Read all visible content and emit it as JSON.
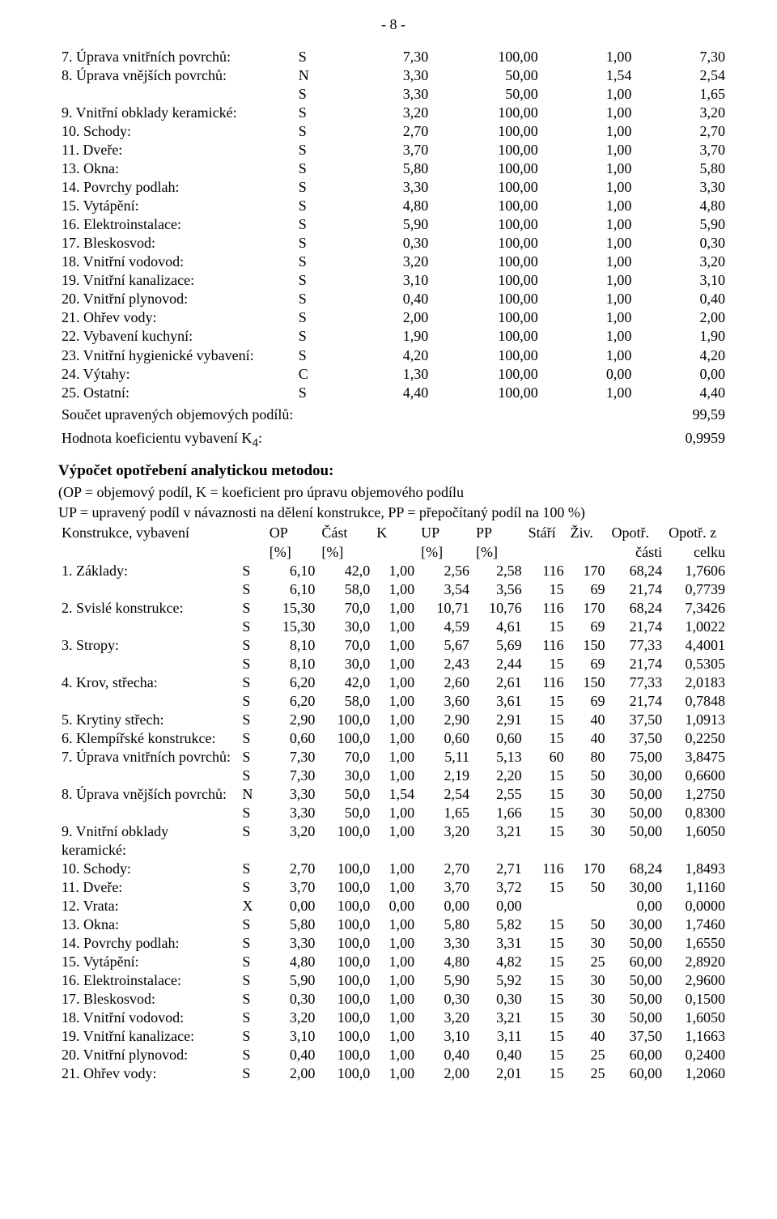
{
  "page_number": "- 8 -",
  "table1": {
    "rows": [
      {
        "label": "7. Úprava vnitřních povrchů:",
        "let": "S",
        "v1": "7,30",
        "v2": "100,00",
        "v3": "1,00",
        "v4": "7,30"
      },
      {
        "label": "8. Úprava vnějších povrchů:",
        "let": "N",
        "v1": "3,30",
        "v2": "50,00",
        "v3": "1,54",
        "v4": "2,54"
      },
      {
        "label": "",
        "let": "S",
        "v1": "3,30",
        "v2": "50,00",
        "v3": "1,00",
        "v4": "1,65"
      },
      {
        "label": "9. Vnitřní obklady keramické:",
        "let": "S",
        "v1": "3,20",
        "v2": "100,00",
        "v3": "1,00",
        "v4": "3,20"
      },
      {
        "label": "10. Schody:",
        "let": "S",
        "v1": "2,70",
        "v2": "100,00",
        "v3": "1,00",
        "v4": "2,70"
      },
      {
        "label": "11. Dveře:",
        "let": "S",
        "v1": "3,70",
        "v2": "100,00",
        "v3": "1,00",
        "v4": "3,70"
      },
      {
        "label": "13. Okna:",
        "let": "S",
        "v1": "5,80",
        "v2": "100,00",
        "v3": "1,00",
        "v4": "5,80"
      },
      {
        "label": "14. Povrchy podlah:",
        "let": "S",
        "v1": "3,30",
        "v2": "100,00",
        "v3": "1,00",
        "v4": "3,30"
      },
      {
        "label": "15. Vytápění:",
        "let": "S",
        "v1": "4,80",
        "v2": "100,00",
        "v3": "1,00",
        "v4": "4,80"
      },
      {
        "label": "16. Elektroinstalace:",
        "let": "S",
        "v1": "5,90",
        "v2": "100,00",
        "v3": "1,00",
        "v4": "5,90"
      },
      {
        "label": "17. Bleskosvod:",
        "let": "S",
        "v1": "0,30",
        "v2": "100,00",
        "v3": "1,00",
        "v4": "0,30"
      },
      {
        "label": "18. Vnitřní vodovod:",
        "let": "S",
        "v1": "3,20",
        "v2": "100,00",
        "v3": "1,00",
        "v4": "3,20"
      },
      {
        "label": "19. Vnitřní kanalizace:",
        "let": "S",
        "v1": "3,10",
        "v2": "100,00",
        "v3": "1,00",
        "v4": "3,10"
      },
      {
        "label": "20. Vnitřní plynovod:",
        "let": "S",
        "v1": "0,40",
        "v2": "100,00",
        "v3": "1,00",
        "v4": "0,40"
      },
      {
        "label": "21. Ohřev vody:",
        "let": "S",
        "v1": "2,00",
        "v2": "100,00",
        "v3": "1,00",
        "v4": "2,00"
      },
      {
        "label": "22. Vybavení kuchyní:",
        "let": "S",
        "v1": "1,90",
        "v2": "100,00",
        "v3": "1,00",
        "v4": "1,90"
      },
      {
        "label": "23. Vnitřní hygienické vybavení:",
        "let": "S",
        "v1": "4,20",
        "v2": "100,00",
        "v3": "1,00",
        "v4": "4,20"
      },
      {
        "label": "24. Výtahy:",
        "let": "C",
        "v1": "1,30",
        "v2": "100,00",
        "v3": "0,00",
        "v4": "0,00"
      },
      {
        "label": "25. Ostatní:",
        "let": "S",
        "v1": "4,40",
        "v2": "100,00",
        "v3": "1,00",
        "v4": "4,40"
      }
    ],
    "sum_label": "Součet upravených objemových podílů:",
    "sum_value": "99,59",
    "k4_label": "Hodnota koeficientu vybavení K",
    "k4_sub": "4",
    "k4_suffix": ":",
    "k4_value": "0,9959"
  },
  "section": {
    "title": "Výpočet opotřebení analytickou metodou:",
    "line1": "(OP = objemový podíl, K = koeficient pro úpravu objemového podílu",
    "line2": "UP = upravený podíl v návaznosti na dělení konstrukce, PP = přepočítaný podíl na 100 %)"
  },
  "table2": {
    "header1": {
      "label": "Konstrukce, vybavení",
      "op": "OP",
      "part": "Část",
      "k": "K",
      "up": "UP",
      "pp": "PP",
      "age": "Stáří",
      "life": "Živ.",
      "w1": "Opotř.",
      "w2": "Opotř. z"
    },
    "header2": {
      "op": "[%]",
      "part": "[%]",
      "up": "[%]",
      "pp": "[%]",
      "w1": "části",
      "w2": "celku"
    },
    "rows": [
      {
        "label": "1. Základy:",
        "let": "S",
        "op": "6,10",
        "part": "42,0",
        "k": "1,00",
        "up": "2,56",
        "pp": "2,58",
        "age": "116",
        "life": "170",
        "w1": "68,24",
        "w2": "1,7606"
      },
      {
        "label": "",
        "let": "S",
        "op": "6,10",
        "part": "58,0",
        "k": "1,00",
        "up": "3,54",
        "pp": "3,56",
        "age": "15",
        "life": "69",
        "w1": "21,74",
        "w2": "0,7739"
      },
      {
        "label": "2. Svislé konstrukce:",
        "let": "S",
        "op": "15,30",
        "part": "70,0",
        "k": "1,00",
        "up": "10,71",
        "pp": "10,76",
        "age": "116",
        "life": "170",
        "w1": "68,24",
        "w2": "7,3426"
      },
      {
        "label": "",
        "let": "S",
        "op": "15,30",
        "part": "30,0",
        "k": "1,00",
        "up": "4,59",
        "pp": "4,61",
        "age": "15",
        "life": "69",
        "w1": "21,74",
        "w2": "1,0022"
      },
      {
        "label": "3. Stropy:",
        "let": "S",
        "op": "8,10",
        "part": "70,0",
        "k": "1,00",
        "up": "5,67",
        "pp": "5,69",
        "age": "116",
        "life": "150",
        "w1": "77,33",
        "w2": "4,4001"
      },
      {
        "label": "",
        "let": "S",
        "op": "8,10",
        "part": "30,0",
        "k": "1,00",
        "up": "2,43",
        "pp": "2,44",
        "age": "15",
        "life": "69",
        "w1": "21,74",
        "w2": "0,5305"
      },
      {
        "label": "4. Krov, střecha:",
        "let": "S",
        "op": "6,20",
        "part": "42,0",
        "k": "1,00",
        "up": "2,60",
        "pp": "2,61",
        "age": "116",
        "life": "150",
        "w1": "77,33",
        "w2": "2,0183"
      },
      {
        "label": "",
        "let": "S",
        "op": "6,20",
        "part": "58,0",
        "k": "1,00",
        "up": "3,60",
        "pp": "3,61",
        "age": "15",
        "life": "69",
        "w1": "21,74",
        "w2": "0,7848"
      },
      {
        "label": "5. Krytiny střech:",
        "let": "S",
        "op": "2,90",
        "part": "100,0",
        "k": "1,00",
        "up": "2,90",
        "pp": "2,91",
        "age": "15",
        "life": "40",
        "w1": "37,50",
        "w2": "1,0913"
      },
      {
        "label": "6. Klempířské konstrukce:",
        "let": "S",
        "op": "0,60",
        "part": "100,0",
        "k": "1,00",
        "up": "0,60",
        "pp": "0,60",
        "age": "15",
        "life": "40",
        "w1": "37,50",
        "w2": "0,2250"
      },
      {
        "label": "7. Úprava vnitřních povrchů:",
        "let": "S",
        "op": "7,30",
        "part": "70,0",
        "k": "1,00",
        "up": "5,11",
        "pp": "5,13",
        "age": "60",
        "life": "80",
        "w1": "75,00",
        "w2": "3,8475"
      },
      {
        "label": "",
        "let": "S",
        "op": "7,30",
        "part": "30,0",
        "k": "1,00",
        "up": "2,19",
        "pp": "2,20",
        "age": "15",
        "life": "50",
        "w1": "30,00",
        "w2": "0,6600"
      },
      {
        "label": "8. Úprava vnějších povrchů:",
        "let": "N",
        "op": "3,30",
        "part": "50,0",
        "k": "1,54",
        "up": "2,54",
        "pp": "2,55",
        "age": "15",
        "life": "30",
        "w1": "50,00",
        "w2": "1,2750"
      },
      {
        "label": "",
        "let": "S",
        "op": "3,30",
        "part": "50,0",
        "k": "1,00",
        "up": "1,65",
        "pp": "1,66",
        "age": "15",
        "life": "30",
        "w1": "50,00",
        "w2": "0,8300"
      },
      {
        "label": "9. Vnitřní obklady keramické:",
        "let": "S",
        "op": "3,20",
        "part": "100,0",
        "k": "1,00",
        "up": "3,20",
        "pp": "3,21",
        "age": "15",
        "life": "30",
        "w1": "50,00",
        "w2": "1,6050"
      },
      {
        "label": "10. Schody:",
        "let": "S",
        "op": "2,70",
        "part": "100,0",
        "k": "1,00",
        "up": "2,70",
        "pp": "2,71",
        "age": "116",
        "life": "170",
        "w1": "68,24",
        "w2": "1,8493"
      },
      {
        "label": "11. Dveře:",
        "let": "S",
        "op": "3,70",
        "part": "100,0",
        "k": "1,00",
        "up": "3,70",
        "pp": "3,72",
        "age": "15",
        "life": "50",
        "w1": "30,00",
        "w2": "1,1160"
      },
      {
        "label": "12. Vrata:",
        "let": "X",
        "op": "0,00",
        "part": "100,0",
        "k": "0,00",
        "up": "0,00",
        "pp": "0,00",
        "age": "",
        "life": "",
        "w1": "0,00",
        "w2": "0,0000"
      },
      {
        "label": "13. Okna:",
        "let": "S",
        "op": "5,80",
        "part": "100,0",
        "k": "1,00",
        "up": "5,80",
        "pp": "5,82",
        "age": "15",
        "life": "50",
        "w1": "30,00",
        "w2": "1,7460"
      },
      {
        "label": "14. Povrchy podlah:",
        "let": "S",
        "op": "3,30",
        "part": "100,0",
        "k": "1,00",
        "up": "3,30",
        "pp": "3,31",
        "age": "15",
        "life": "30",
        "w1": "50,00",
        "w2": "1,6550"
      },
      {
        "label": "15. Vytápění:",
        "let": "S",
        "op": "4,80",
        "part": "100,0",
        "k": "1,00",
        "up": "4,80",
        "pp": "4,82",
        "age": "15",
        "life": "25",
        "w1": "60,00",
        "w2": "2,8920"
      },
      {
        "label": "16. Elektroinstalace:",
        "let": "S",
        "op": "5,90",
        "part": "100,0",
        "k": "1,00",
        "up": "5,90",
        "pp": "5,92",
        "age": "15",
        "life": "30",
        "w1": "50,00",
        "w2": "2,9600"
      },
      {
        "label": "17. Bleskosvod:",
        "let": "S",
        "op": "0,30",
        "part": "100,0",
        "k": "1,00",
        "up": "0,30",
        "pp": "0,30",
        "age": "15",
        "life": "30",
        "w1": "50,00",
        "w2": "0,1500"
      },
      {
        "label": "18. Vnitřní vodovod:",
        "let": "S",
        "op": "3,20",
        "part": "100,0",
        "k": "1,00",
        "up": "3,20",
        "pp": "3,21",
        "age": "15",
        "life": "30",
        "w1": "50,00",
        "w2": "1,6050"
      },
      {
        "label": "19. Vnitřní kanalizace:",
        "let": "S",
        "op": "3,10",
        "part": "100,0",
        "k": "1,00",
        "up": "3,10",
        "pp": "3,11",
        "age": "15",
        "life": "40",
        "w1": "37,50",
        "w2": "1,1663"
      },
      {
        "label": "20. Vnitřní plynovod:",
        "let": "S",
        "op": "0,40",
        "part": "100,0",
        "k": "1,00",
        "up": "0,40",
        "pp": "0,40",
        "age": "15",
        "life": "25",
        "w1": "60,00",
        "w2": "0,2400"
      },
      {
        "label": "21. Ohřev vody:",
        "let": "S",
        "op": "2,00",
        "part": "100,0",
        "k": "1,00",
        "up": "2,00",
        "pp": "2,01",
        "age": "15",
        "life": "25",
        "w1": "60,00",
        "w2": "1,2060"
      }
    ]
  }
}
